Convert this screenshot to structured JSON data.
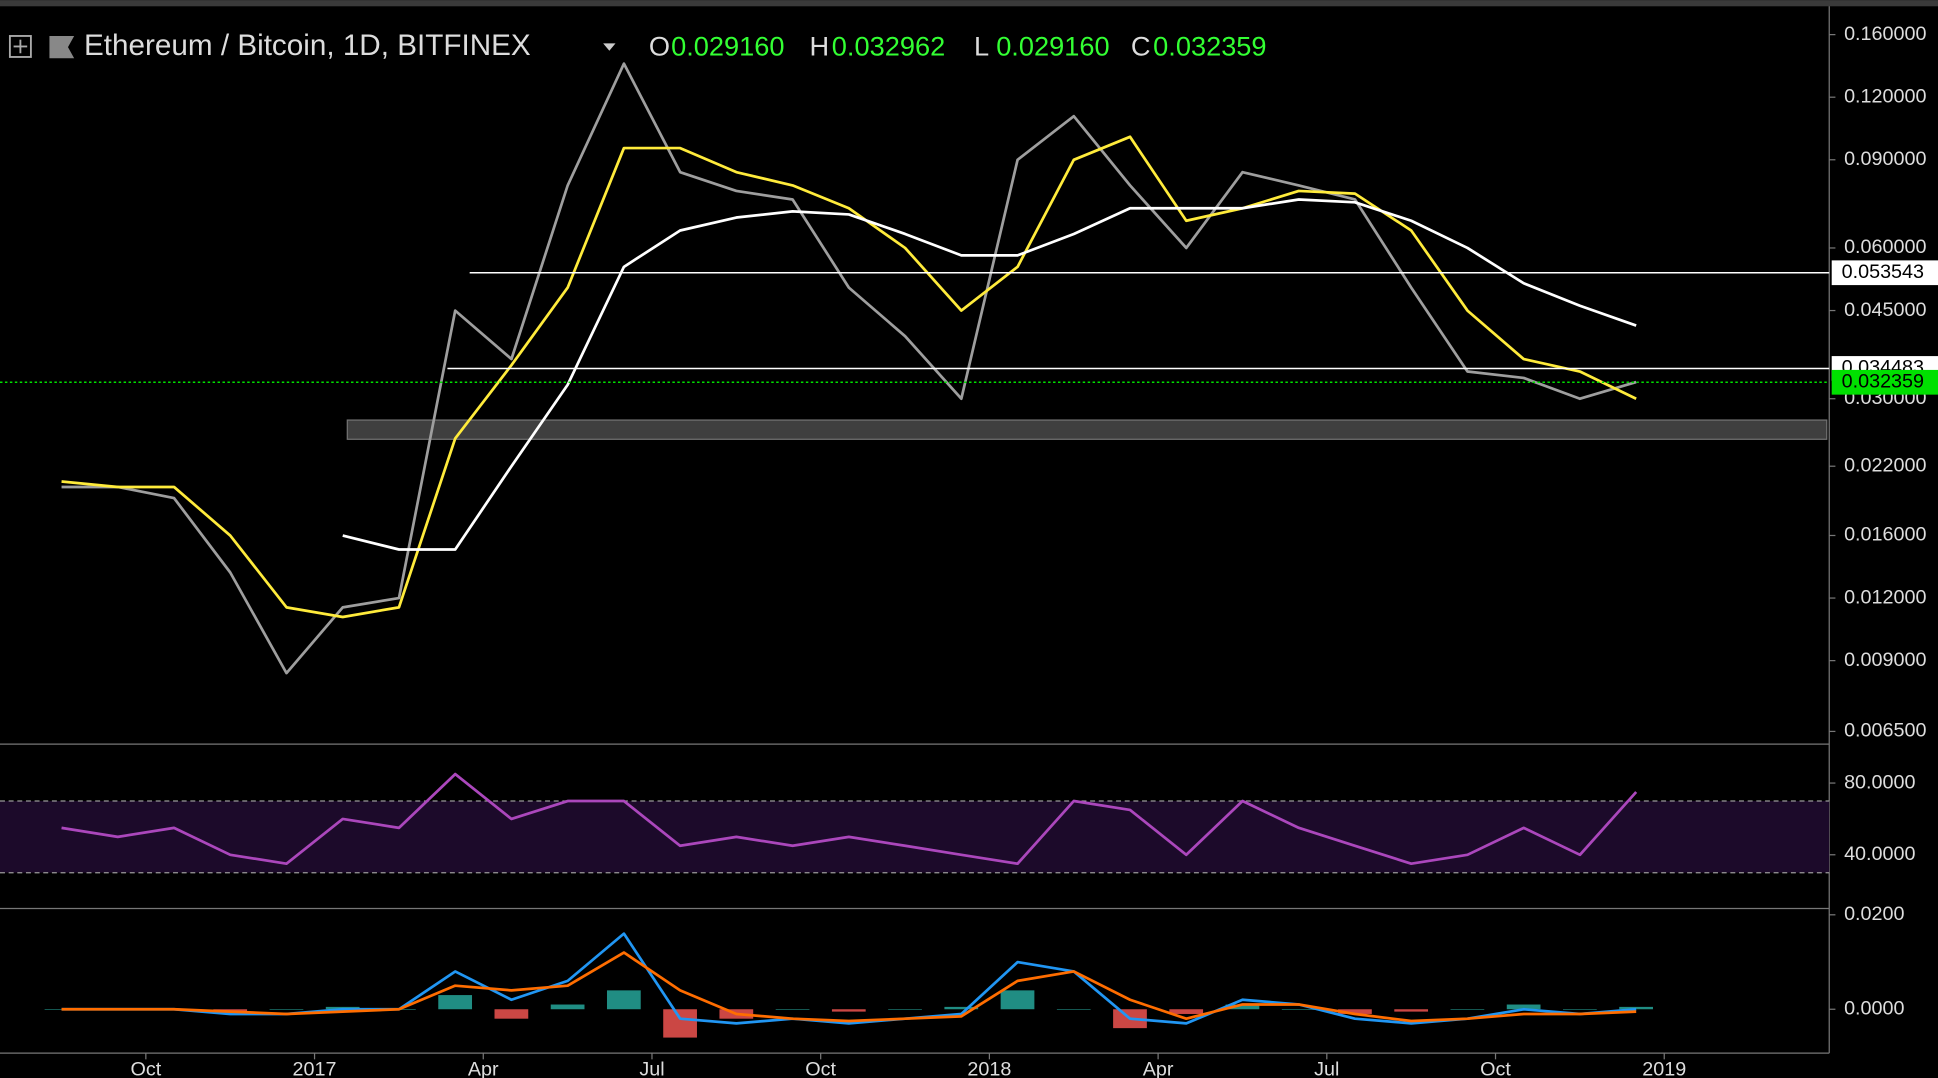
{
  "header": {
    "symbol": "Ethereum / Bitcoin, 1D, BITFINEX",
    "ohlc": [
      {
        "key": "O",
        "value": "0.029160"
      },
      {
        "key": "H",
        "value": "0.032962"
      },
      {
        "key": "L",
        "value": "0.029160"
      },
      {
        "key": "C",
        "value": "0.032359"
      }
    ]
  },
  "chart_data": [
    {
      "type": "line",
      "log_scale": true,
      "x": [
        "2016-08",
        "2016-09",
        "2016-10",
        "2016-11",
        "2016-12",
        "2017-01",
        "2017-02",
        "2017-03",
        "2017-04",
        "2017-05",
        "2017-06",
        "2017-07",
        "2017-08",
        "2017-09",
        "2017-10",
        "2017-11",
        "2017-12",
        "2018-01",
        "2018-02",
        "2018-03",
        "2018-04",
        "2018-05",
        "2018-06",
        "2018-07",
        "2018-08",
        "2018-09",
        "2018-10",
        "2018-11",
        "2018-12"
      ],
      "series": [
        {
          "color": "#9e9e9e",
          "values": [
            0.02,
            0.02,
            0.019,
            0.0135,
            0.0085,
            0.0115,
            0.012,
            0.045,
            0.036,
            0.08,
            0.14,
            0.085,
            0.078,
            0.075,
            0.05,
            0.04,
            0.03,
            0.09,
            0.11,
            0.08,
            0.06,
            0.085,
            0.08,
            0.075,
            0.05,
            0.034,
            0.033,
            0.03,
            0.0324
          ]
        },
        {
          "color": "#ffeb3b",
          "values": [
            0.0205,
            0.02,
            0.02,
            0.016,
            0.0115,
            0.011,
            0.0115,
            0.025,
            0.035,
            0.05,
            0.095,
            0.095,
            0.085,
            0.08,
            0.072,
            0.06,
            0.045,
            0.055,
            0.09,
            0.1,
            0.068,
            0.072,
            0.078,
            0.077,
            0.065,
            0.045,
            0.036,
            0.034,
            0.03
          ]
        },
        {
          "color": "#ffffff",
          "values": [
            null,
            null,
            null,
            null,
            null,
            0.016,
            0.015,
            0.015,
            0.022,
            0.032,
            0.055,
            0.065,
            0.069,
            0.071,
            0.07,
            0.064,
            0.058,
            0.058,
            0.064,
            0.072,
            0.072,
            0.072,
            0.075,
            0.074,
            0.068,
            0.06,
            0.051,
            0.046,
            0.042
          ]
        }
      ],
      "hlines": [
        {
          "value": 0.053543,
          "label": "0.053543",
          "color": "#ffffff"
        },
        {
          "value": 0.034483,
          "label": "0.034483",
          "color": "#ffffff"
        },
        {
          "value": 0.032359,
          "label": "0.032359",
          "color": "#00e000"
        }
      ],
      "zone": [
        0.0249,
        0.0272
      ],
      "ylim": [
        0.0062,
        0.1875
      ],
      "yticks": [
        {
          "value": 0.16,
          "label": "0.160000"
        },
        {
          "value": 0.12,
          "label": "0.120000"
        },
        {
          "value": 0.09,
          "label": "0.090000"
        },
        {
          "value": 0.06,
          "label": "0.060000"
        },
        {
          "value": 0.045,
          "label": "0.045000"
        },
        {
          "value": 0.03,
          "label": "0.030000"
        },
        {
          "value": 0.022,
          "label": "0.022000"
        },
        {
          "value": 0.016,
          "label": "0.016000"
        },
        {
          "value": 0.012,
          "label": "0.012000"
        },
        {
          "value": 0.009,
          "label": "0.009000"
        },
        {
          "value": 0.0065,
          "label": "0.006500"
        }
      ],
      "xticks": [
        {
          "value": "2016-10",
          "label": "Oct"
        },
        {
          "value": "2017-01",
          "label": "2017"
        },
        {
          "value": "2017-04",
          "label": "Apr"
        },
        {
          "value": "2017-07",
          "label": "Jul"
        },
        {
          "value": "2017-10",
          "label": "Oct"
        },
        {
          "value": "2018-01",
          "label": "2018"
        },
        {
          "value": "2018-04",
          "label": "Apr"
        },
        {
          "value": "2018-07",
          "label": "Jul"
        },
        {
          "value": "2018-10",
          "label": "Oct"
        },
        {
          "value": "2019-01",
          "label": "2019"
        }
      ]
    },
    {
      "type": "line",
      "x": [
        "2016-08",
        "2016-09",
        "2016-10",
        "2016-11",
        "2016-12",
        "2017-01",
        "2017-02",
        "2017-03",
        "2017-04",
        "2017-05",
        "2017-06",
        "2017-07",
        "2017-08",
        "2017-09",
        "2017-10",
        "2017-11",
        "2017-12",
        "2018-01",
        "2018-02",
        "2018-03",
        "2018-04",
        "2018-05",
        "2018-06",
        "2018-07",
        "2018-08",
        "2018-09",
        "2018-10",
        "2018-11",
        "2018-12"
      ],
      "series": [
        {
          "color": "#ab47bc",
          "values": [
            55,
            50,
            55,
            40,
            35,
            60,
            55,
            85,
            60,
            70,
            70,
            45,
            50,
            45,
            50,
            45,
            40,
            35,
            70,
            65,
            40,
            70,
            55,
            45,
            35,
            40,
            55,
            40,
            75
          ]
        }
      ],
      "bands": [
        30,
        70
      ],
      "ylim": [
        10,
        101
      ],
      "yticks": [
        {
          "value": 80,
          "label": "80.0000"
        },
        {
          "value": 40,
          "label": "40.0000"
        }
      ]
    },
    {
      "type": "macd",
      "x": [
        "2016-08",
        "2016-09",
        "2016-10",
        "2016-11",
        "2016-12",
        "2017-01",
        "2017-02",
        "2017-03",
        "2017-04",
        "2017-05",
        "2017-06",
        "2017-07",
        "2017-08",
        "2017-09",
        "2017-10",
        "2017-11",
        "2017-12",
        "2018-01",
        "2018-02",
        "2018-03",
        "2018-04",
        "2018-05",
        "2018-06",
        "2018-07",
        "2018-08",
        "2018-09",
        "2018-10",
        "2018-11",
        "2018-12"
      ],
      "series": [
        {
          "color": "#2196f3",
          "values": [
            0,
            0,
            0,
            -0.001,
            -0.001,
            0,
            0,
            0.008,
            0.002,
            0.006,
            0.016,
            -0.002,
            -0.003,
            -0.002,
            -0.003,
            -0.002,
            -0.001,
            0.01,
            0.008,
            -0.002,
            -0.003,
            0.002,
            0.001,
            -0.002,
            -0.003,
            -0.002,
            0,
            -0.001,
            0
          ]
        },
        {
          "color": "#ff6d00",
          "values": [
            0,
            0,
            0,
            -0.0005,
            -0.001,
            -0.0005,
            0,
            0.005,
            0.004,
            0.005,
            0.012,
            0.004,
            -0.001,
            -0.002,
            -0.0025,
            -0.002,
            -0.0015,
            0.006,
            0.008,
            0.002,
            -0.002,
            0.001,
            0.001,
            -0.001,
            -0.0025,
            -0.002,
            -0.001,
            -0.001,
            -0.0005
          ]
        }
      ],
      "histogram": {
        "colors": [
          "#26a69a",
          "#ef5350"
        ],
        "values": [
          0,
          0,
          0,
          -0.0005,
          0,
          0.0005,
          0,
          0.003,
          -0.002,
          0.001,
          0.004,
          -0.006,
          -0.002,
          0,
          -0.0005,
          0,
          0.0005,
          0.004,
          0,
          -0.004,
          -0.001,
          0.001,
          0,
          -0.001,
          -0.0005,
          0,
          0.001,
          0,
          0.0005
        ]
      },
      "ylim": [
        -0.0093,
        0.0208
      ],
      "yticks": [
        {
          "value": 0.02,
          "label": "0.0200"
        },
        {
          "value": 0,
          "label": "0.0000"
        }
      ]
    }
  ]
}
